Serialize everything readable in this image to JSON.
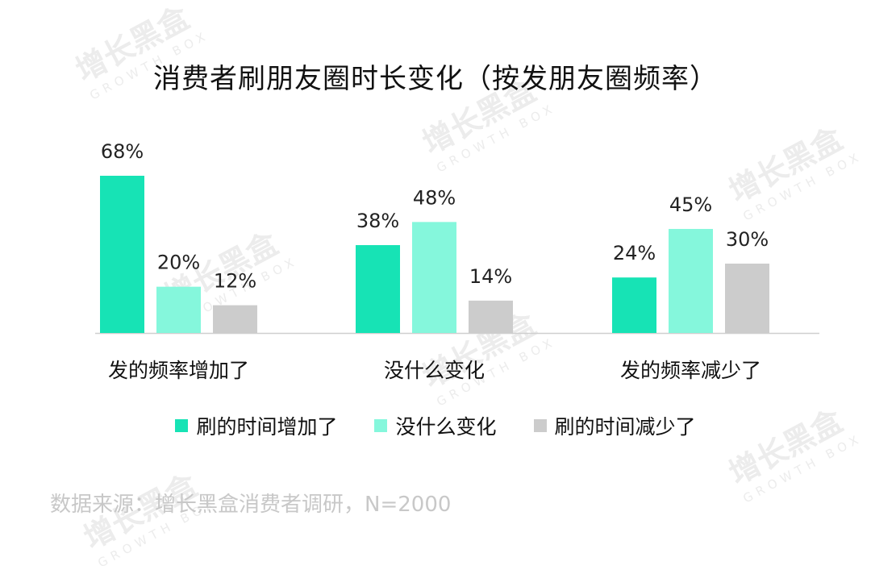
{
  "title": "消费者刷朋友圈时长变化（按发朋友圈频率）",
  "watermark": {
    "brand": "增长黑盒",
    "brand_en": "GROWTH BOX"
  },
  "source_note": "数据来源：增长黑盒消费者调研，N=2000",
  "chart_data": {
    "type": "bar",
    "title": "消费者刷朋友圈时长变化（按发朋友圈频率）",
    "categories": [
      "发的频率增加了",
      "没什么变化",
      "发的频率减少了"
    ],
    "series": [
      {
        "name": "刷的时间增加了",
        "values": [
          68,
          38,
          24
        ],
        "color": "#17e3b5"
      },
      {
        "name": "没什么变化",
        "values": [
          20,
          48,
          45
        ],
        "color": "#85f7dc"
      },
      {
        "name": "刷的时间减少了",
        "values": [
          12,
          14,
          30
        ],
        "color": "#cccccc"
      }
    ],
    "value_suffix": "%",
    "ylim": [
      0,
      70
    ],
    "grid": false,
    "legend_position": "bottom"
  }
}
